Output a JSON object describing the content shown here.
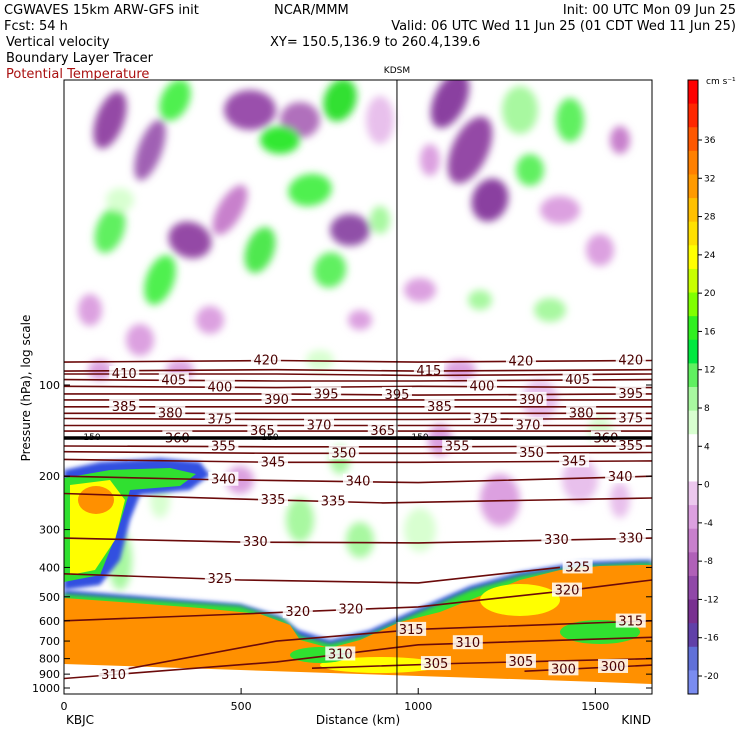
{
  "header": {
    "model": "CGWAVES 15km ARW-GFS init",
    "org": "NCAR/MMM",
    "init": "Init: 00 UTC Mon 09 Jun 25",
    "fcst": "Fcst:   54 h",
    "valid": "Valid: 06 UTC Wed 11 Jun 25 (01 CDT Wed 11 Jun 25)",
    "field1": "Vertical velocity",
    "field2": "Boundary Layer Tracer",
    "field3": "Potential Temperature",
    "xy": "XY= 150.5,136.9 to 260.4,139.6"
  },
  "colors": {
    "theta_line": "#6b0a0a",
    "theta_label": "#4a0000",
    "tracer_orange": "#ff9000",
    "title_red": "#a11111"
  },
  "chart_data": {
    "type": "heatmap",
    "title": "",
    "station_marker": {
      "label": "KDSM",
      "x_km": 940
    },
    "xlabel": "Distance (km)",
    "ylabel": "Pressure (hPa), log scale",
    "x_range": [
      0,
      1660
    ],
    "xticks": [
      0,
      500,
      1000,
      1500
    ],
    "x_end_labels": {
      "left": "KBJC",
      "right": "KIND"
    },
    "y_scale": "log",
    "y_range_hPa": [
      1000,
      10
    ],
    "yticks": [
      100,
      200,
      300,
      400,
      500,
      600,
      700,
      800,
      900,
      1000
    ],
    "colorbar": {
      "units": "cm s⁻¹",
      "labels": [
        36,
        32,
        28,
        24,
        20,
        16,
        12,
        8,
        4,
        0,
        -4,
        -8,
        -12,
        -16,
        -20
      ],
      "colors": [
        "#fe0000",
        "#ff2800",
        "#ff5800",
        "#ff8000",
        "#ff9a00",
        "#ffc000",
        "#ffe000",
        "#ffff00",
        "#c8ff00",
        "#80ff00",
        "#30f020",
        "#00e840",
        "#60f060",
        "#a8f8a0",
        "#d8ffd0",
        "#ffffff",
        "#ffffff",
        "#ecc8ee",
        "#dca0e0",
        "#c880cc",
        "#b060b8",
        "#9048a8",
        "#783090",
        "#6040a8",
        "#6070d8",
        "#7a8cf0"
      ]
    },
    "theta_contours": [
      {
        "label": "420",
        "p": 85,
        "points": [
          [
            0,
            84
          ],
          [
            600,
            83
          ],
          [
            1000,
            84
          ],
          [
            1660,
            83
          ]
        ],
        "labels_at_km": [
          570,
          1290,
          1600
        ]
      },
      {
        "label": "415",
        "p": 90,
        "points": [
          [
            0,
            90
          ],
          [
            600,
            89
          ],
          [
            1000,
            90
          ],
          [
            1660,
            89
          ]
        ],
        "labels_at_km": [
          1030
        ]
      },
      {
        "label": "410",
        "p": 92,
        "points": [
          [
            0,
            92
          ],
          [
            600,
            92
          ],
          [
            1000,
            93
          ],
          [
            1660,
            92
          ]
        ],
        "labels_at_km": [
          170
        ]
      },
      {
        "label": "405",
        "p": 97,
        "points": [
          [
            0,
            96
          ],
          [
            600,
            97
          ],
          [
            1000,
            97
          ],
          [
            1660,
            96
          ]
        ],
        "labels_at_km": [
          310,
          1450
        ]
      },
      {
        "label": "400",
        "p": 102,
        "points": [
          [
            0,
            101
          ],
          [
            600,
            102
          ],
          [
            1000,
            101
          ],
          [
            1660,
            102
          ]
        ],
        "labels_at_km": [
          440,
          1180
        ]
      },
      {
        "label": "395",
        "p": 107,
        "points": [
          [
            0,
            107
          ],
          [
            600,
            107
          ],
          [
            1000,
            108
          ],
          [
            1660,
            107
          ]
        ],
        "labels_at_km": [
          740,
          940,
          1600
        ]
      },
      {
        "label": "390",
        "p": 112,
        "points": [
          [
            0,
            112
          ],
          [
            600,
            112
          ],
          [
            1000,
            112
          ],
          [
            1660,
            112
          ]
        ],
        "labels_at_km": [
          600,
          1320
        ]
      },
      {
        "label": "385",
        "p": 118,
        "points": [
          [
            0,
            118
          ],
          [
            600,
            118
          ],
          [
            1000,
            118
          ],
          [
            1660,
            118
          ]
        ],
        "labels_at_km": [
          170,
          1060
        ]
      },
      {
        "label": "380",
        "p": 124,
        "points": [
          [
            0,
            124
          ],
          [
            600,
            124
          ],
          [
            1000,
            124
          ],
          [
            1660,
            124
          ]
        ],
        "labels_at_km": [
          300,
          1460
        ]
      },
      {
        "label": "375",
        "p": 130,
        "points": [
          [
            0,
            129
          ],
          [
            600,
            130
          ],
          [
            1000,
            130
          ],
          [
            1660,
            129
          ]
        ],
        "labels_at_km": [
          440,
          1190,
          1600
        ]
      },
      {
        "label": "370",
        "p": 136,
        "points": [
          [
            0,
            136
          ],
          [
            600,
            136
          ],
          [
            1000,
            136
          ],
          [
            1660,
            136
          ]
        ],
        "labels_at_km": [
          720,
          1310
        ]
      },
      {
        "label": "365",
        "p": 142,
        "points": [
          [
            0,
            142
          ],
          [
            600,
            142
          ],
          [
            1000,
            142
          ],
          [
            1660,
            142
          ]
        ],
        "labels_at_km": [
          560,
          900
        ]
      },
      {
        "label": "360",
        "p": 150,
        "points": [
          [
            0,
            150
          ],
          [
            600,
            150
          ],
          [
            1000,
            151
          ],
          [
            1660,
            150
          ]
        ],
        "labels_at_km": [
          320,
          1530
        ]
      },
      {
        "label": "355",
        "p": 160,
        "points": [
          [
            0,
            159
          ],
          [
            600,
            160
          ],
          [
            1000,
            160
          ],
          [
            1660,
            159
          ]
        ],
        "labels_at_km": [
          450,
          1110,
          1600
        ]
      },
      {
        "label": "350",
        "p": 168,
        "points": [
          [
            0,
            166
          ],
          [
            600,
            168
          ],
          [
            1000,
            168
          ],
          [
            1660,
            167
          ]
        ],
        "labels_at_km": [
          790,
          1320
        ]
      },
      {
        "label": "345",
        "p": 180,
        "points": [
          [
            0,
            176
          ],
          [
            600,
            180
          ],
          [
            1000,
            180
          ],
          [
            1660,
            178
          ]
        ],
        "labels_at_km": [
          590,
          1440
        ]
      },
      {
        "label": "340",
        "p": 205,
        "points": [
          [
            0,
            200
          ],
          [
            400,
            205
          ],
          [
            1000,
            210
          ],
          [
            1660,
            200
          ]
        ],
        "labels_at_km": [
          450,
          830,
          1570
        ]
      },
      {
        "label": "335",
        "p": 240,
        "points": [
          [
            0,
            228
          ],
          [
            500,
            238
          ],
          [
            900,
            245
          ],
          [
            1660,
            236
          ]
        ],
        "labels_at_km": [
          590,
          760
        ]
      },
      {
        "label": "330",
        "p": 330,
        "points": [
          [
            0,
            320
          ],
          [
            500,
            330
          ],
          [
            1000,
            332
          ],
          [
            1660,
            320
          ]
        ],
        "labels_at_km": [
          540,
          1390,
          1600
        ]
      },
      {
        "label": "325",
        "p": 430,
        "points": [
          [
            0,
            420
          ],
          [
            500,
            440
          ],
          [
            1000,
            450
          ],
          [
            1400,
            400
          ]
        ],
        "labels_at_km": [
          440,
          1450
        ]
      },
      {
        "label": "320",
        "p": 560,
        "points": [
          [
            0,
            600
          ],
          [
            500,
            570
          ],
          [
            1000,
            540
          ],
          [
            1400,
            480
          ],
          [
            1660,
            440
          ]
        ],
        "labels_at_km": [
          660,
          810,
          1420
        ]
      },
      {
        "label": "315",
        "p": 620,
        "points": [
          [
            100,
            900
          ],
          [
            600,
            700
          ],
          [
            1000,
            640
          ],
          [
            1660,
            600
          ]
        ],
        "labels_at_km": [
          980,
          1600
        ]
      },
      {
        "label": "310",
        "p": 780,
        "points": [
          [
            0,
            930
          ],
          [
            600,
            820
          ],
          [
            1000,
            720
          ],
          [
            1660,
            680
          ]
        ],
        "labels_at_km": [
          140,
          780,
          1140
        ]
      },
      {
        "label": "305",
        "p": 820,
        "points": [
          [
            700,
            860
          ],
          [
            1100,
            830
          ],
          [
            1660,
            800
          ]
        ],
        "labels_at_km": [
          1050,
          1290
        ]
      },
      {
        "label": "300",
        "p": 880,
        "points": [
          [
            1300,
            880
          ],
          [
            1660,
            840
          ]
        ],
        "labels_at_km": [
          1410,
          1550
        ]
      }
    ],
    "tropopause": {
      "label": "150",
      "p": 150
    }
  }
}
